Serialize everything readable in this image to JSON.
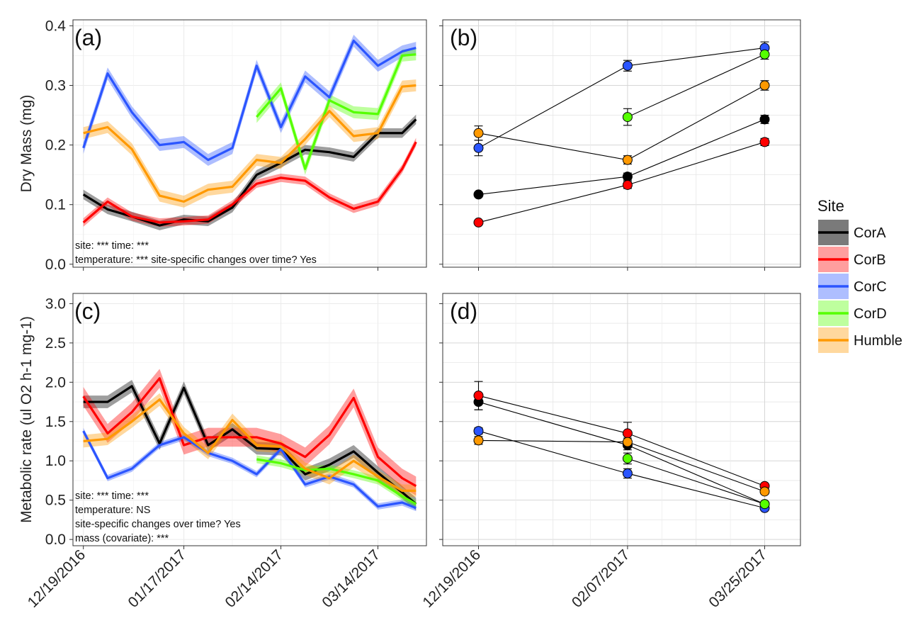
{
  "figure": {
    "dates": [
      "12/19/2016",
      "12/26/2016",
      "01/02/2017",
      "01/10/2017",
      "01/17/2017",
      "01/24/2017",
      "01/31/2017",
      "02/07/2017",
      "02/14/2017",
      "02/21/2017",
      "02/28/2017",
      "03/07/2017",
      "03/14/2017",
      "03/21/2017",
      "03/25/2017"
    ],
    "colors": {
      "CorA": "#000000",
      "CorB": "#ff0000",
      "CorC": "#2b55ff",
      "CorD": "#55ff00",
      "Humble": "#ff9900"
    },
    "legend": {
      "title": "Site",
      "entries": [
        "CorA",
        "CorB",
        "CorC",
        "CorD",
        "Humble"
      ]
    }
  },
  "chart_data": [
    {
      "id": "a",
      "type": "line",
      "panel_label": "(a)",
      "ylabel": "Dry Mass (mg)",
      "ylim": [
        -0.005,
        0.41
      ],
      "yticks": [
        "0.0",
        "0.1",
        "0.2",
        "0.3",
        "0.4"
      ],
      "yticks_values": [
        0,
        0.1,
        0.2,
        0.3,
        0.4
      ],
      "xticks": [
        "12/19/2016",
        "01/17/2017",
        "02/14/2017",
        "03/14/2017"
      ],
      "xticks_values": [
        "12/19/2016",
        "01/17/2017",
        "02/14/2017",
        "03/14/2017"
      ],
      "xlim": [
        "12/16/2016",
        "03/28/2017"
      ],
      "annotations": [
        "site: *** time: ***",
        "temperature: *** site-specific changes over time? Yes"
      ],
      "series": [
        {
          "name": "CorA",
          "x": [
            "12/19/2016",
            "12/26/2016",
            "01/02/2017",
            "01/10/2017",
            "01/17/2017",
            "01/24/2017",
            "01/31/2017",
            "02/07/2017",
            "02/14/2017",
            "02/21/2017",
            "02/28/2017",
            "03/07/2017",
            "03/14/2017",
            "03/21/2017",
            "03/25/2017"
          ],
          "y": [
            0.117,
            0.092,
            0.08,
            0.065,
            0.075,
            0.072,
            0.095,
            0.15,
            0.17,
            0.192,
            0.188,
            0.18,
            0.22,
            0.22,
            0.243
          ],
          "band": 0.008
        },
        {
          "name": "CorB",
          "x": [
            "12/19/2016",
            "12/26/2016",
            "01/02/2017",
            "01/10/2017",
            "01/17/2017",
            "01/24/2017",
            "01/31/2017",
            "02/07/2017",
            "02/14/2017",
            "02/21/2017",
            "02/28/2017",
            "03/07/2017",
            "03/14/2017",
            "03/21/2017",
            "03/25/2017"
          ],
          "y": [
            0.07,
            0.105,
            0.08,
            0.07,
            0.072,
            0.075,
            0.1,
            0.135,
            0.145,
            0.14,
            0.112,
            0.093,
            0.105,
            0.16,
            0.205
          ],
          "band": 0.007
        },
        {
          "name": "CorC",
          "x": [
            "12/19/2016",
            "12/26/2016",
            "01/02/2017",
            "01/10/2017",
            "01/17/2017",
            "01/24/2017",
            "01/31/2017",
            "02/07/2017",
            "02/14/2017",
            "02/21/2017",
            "02/28/2017",
            "03/07/2017",
            "03/14/2017",
            "03/21/2017",
            "03/25/2017"
          ],
          "y": [
            0.195,
            0.32,
            0.255,
            0.2,
            0.205,
            0.175,
            0.195,
            0.333,
            0.23,
            0.315,
            0.28,
            0.375,
            0.333,
            0.357,
            0.363
          ],
          "band": 0.01
        },
        {
          "name": "CorD",
          "x": [
            "02/07/2017",
            "02/14/2017",
            "02/21/2017",
            "02/28/2017",
            "03/07/2017",
            "03/14/2017",
            "03/21/2017",
            "03/25/2017"
          ],
          "y": [
            0.247,
            0.295,
            0.16,
            0.275,
            0.255,
            0.252,
            0.35,
            0.352
          ],
          "band": 0.01
        },
        {
          "name": "Humble",
          "x": [
            "12/19/2016",
            "12/26/2016",
            "01/02/2017",
            "01/10/2017",
            "01/17/2017",
            "01/24/2017",
            "01/31/2017",
            "02/07/2017",
            "02/14/2017",
            "02/21/2017",
            "02/28/2017",
            "03/07/2017",
            "03/14/2017",
            "03/21/2017",
            "03/25/2017"
          ],
          "y": [
            0.22,
            0.23,
            0.193,
            0.115,
            0.105,
            0.125,
            0.13,
            0.175,
            0.17,
            0.21,
            0.257,
            0.215,
            0.22,
            0.298,
            0.3
          ],
          "band": 0.01
        }
      ]
    },
    {
      "id": "b",
      "type": "scatter",
      "panel_label": "(b)",
      "ylim": [
        -0.005,
        0.41
      ],
      "yticks_values": [
        0,
        0.1,
        0.2,
        0.3,
        0.4
      ],
      "x": [
        "12/19/2016",
        "02/07/2017",
        "03/25/2017"
      ],
      "xticks": [
        "12/19/2016",
        "02/07/2017",
        "03/25/2017"
      ],
      "series": [
        {
          "name": "CorA",
          "y": [
            0.117,
            0.147,
            0.243
          ],
          "err": [
            0.004,
            0.006,
            0.007
          ]
        },
        {
          "name": "CorB",
          "y": [
            0.07,
            0.133,
            0.205
          ],
          "err": [
            0.003,
            0.006,
            0.006
          ]
        },
        {
          "name": "CorC",
          "y": [
            0.195,
            0.333,
            0.363
          ],
          "err": [
            0.013,
            0.009,
            0.01
          ]
        },
        {
          "name": "CorD",
          "y": [
            null,
            0.247,
            0.352
          ],
          "err": [
            null,
            0.014,
            0.008
          ]
        },
        {
          "name": "Humble",
          "y": [
            0.22,
            0.175,
            0.3
          ],
          "err": [
            0.012,
            0.007,
            0.008
          ]
        }
      ]
    },
    {
      "id": "c",
      "type": "line",
      "panel_label": "(c)",
      "ylabel": "Metabolic rate (ul O2 h-1 mg-1)",
      "ylim": [
        -0.08,
        3.13
      ],
      "yticks": [
        "0.0",
        "0.5",
        "1.0",
        "1.5",
        "2.0",
        "2.5",
        "3.0"
      ],
      "yticks_values": [
        0,
        0.5,
        1.0,
        1.5,
        2.0,
        2.5,
        3.0
      ],
      "xticks": [
        "12/19/2016",
        "01/17/2017",
        "02/14/2017",
        "03/14/2017"
      ],
      "xticks_values": [
        "12/19/2016",
        "01/17/2017",
        "02/14/2017",
        "03/14/2017"
      ],
      "xlim": [
        "12/16/2016",
        "03/28/2017"
      ],
      "annotations": [
        "site: *** time: ***",
        "temperature: NS",
        "site-specific changes over time? Yes",
        "mass (covariate): ***"
      ],
      "series": [
        {
          "name": "CorA",
          "x": [
            "12/19/2016",
            "12/26/2016",
            "01/02/2017",
            "01/10/2017",
            "01/17/2017",
            "01/24/2017",
            "01/31/2017",
            "02/07/2017",
            "02/14/2017",
            "02/21/2017",
            "02/28/2017",
            "03/07/2017",
            "03/14/2017",
            "03/21/2017",
            "03/25/2017"
          ],
          "y": [
            1.75,
            1.75,
            1.95,
            1.22,
            1.93,
            1.2,
            1.4,
            1.16,
            1.15,
            0.83,
            0.95,
            1.12,
            0.85,
            0.6,
            0.45
          ],
          "band": 0.08
        },
        {
          "name": "CorB",
          "x": [
            "12/19/2016",
            "12/26/2016",
            "01/02/2017",
            "01/10/2017",
            "01/17/2017",
            "01/24/2017",
            "01/31/2017",
            "02/07/2017",
            "02/14/2017",
            "02/21/2017",
            "02/28/2017",
            "03/07/2017",
            "03/14/2017",
            "03/21/2017",
            "03/25/2017"
          ],
          "y": [
            1.82,
            1.35,
            1.62,
            2.05,
            1.2,
            1.3,
            1.3,
            1.3,
            1.22,
            1.05,
            1.33,
            1.8,
            1.05,
            0.78,
            0.68
          ],
          "band": 0.12
        },
        {
          "name": "CorC",
          "x": [
            "12/19/2016",
            "12/26/2016",
            "01/02/2017",
            "01/10/2017",
            "01/17/2017",
            "01/24/2017",
            "01/31/2017",
            "02/07/2017",
            "02/14/2017",
            "02/21/2017",
            "02/28/2017",
            "03/07/2017",
            "03/14/2017",
            "03/21/2017",
            "03/25/2017"
          ],
          "y": [
            1.38,
            0.78,
            0.9,
            1.2,
            1.3,
            1.1,
            1.0,
            0.83,
            1.15,
            0.7,
            0.8,
            0.7,
            0.42,
            0.47,
            0.4
          ],
          "band": 0.04
        },
        {
          "name": "CorD",
          "x": [
            "02/07/2017",
            "02/14/2017",
            "02/21/2017",
            "02/28/2017",
            "03/07/2017",
            "03/14/2017",
            "03/21/2017",
            "03/25/2017"
          ],
          "y": [
            1.02,
            0.97,
            0.88,
            0.9,
            0.83,
            0.75,
            0.55,
            0.45
          ],
          "band": 0.05
        },
        {
          "name": "Humble",
          "x": [
            "12/19/2016",
            "12/26/2016",
            "01/02/2017",
            "01/10/2017",
            "01/17/2017",
            "01/24/2017",
            "01/31/2017",
            "02/07/2017",
            "02/14/2017",
            "02/21/2017",
            "02/28/2017",
            "03/07/2017",
            "03/14/2017",
            "03/21/2017",
            "03/25/2017"
          ],
          "y": [
            1.25,
            1.28,
            1.5,
            1.78,
            1.35,
            1.1,
            1.52,
            1.2,
            1.18,
            0.9,
            0.78,
            1.0,
            0.8,
            0.62,
            0.62
          ],
          "band": 0.08
        }
      ]
    },
    {
      "id": "d",
      "type": "scatter",
      "panel_label": "(d)",
      "ylim": [
        -0.08,
        3.13
      ],
      "yticks_values": [
        0,
        0.5,
        1.0,
        1.5,
        2.0,
        2.5,
        3.0
      ],
      "x": [
        "12/19/2016",
        "02/07/2017",
        "03/25/2017"
      ],
      "xticks": [
        "12/19/2016",
        "02/07/2017",
        "03/25/2017"
      ],
      "series": [
        {
          "name": "CorA",
          "y": [
            1.75,
            1.2,
            0.45
          ],
          "err": [
            0.1,
            0.06,
            0.02
          ]
        },
        {
          "name": "CorB",
          "y": [
            1.83,
            1.35,
            0.68
          ],
          "err": [
            0.18,
            0.14,
            0.02
          ]
        },
        {
          "name": "CorC",
          "y": [
            1.38,
            0.84,
            0.4
          ],
          "err": [
            0.04,
            0.06,
            0.02
          ]
        },
        {
          "name": "CorD",
          "y": [
            null,
            1.03,
            0.45
          ],
          "err": [
            null,
            0.07,
            0.02
          ]
        },
        {
          "name": "Humble",
          "y": [
            1.26,
            1.24,
            0.61
          ],
          "err": [
            0.05,
            0.05,
            0.02
          ]
        }
      ]
    }
  ]
}
